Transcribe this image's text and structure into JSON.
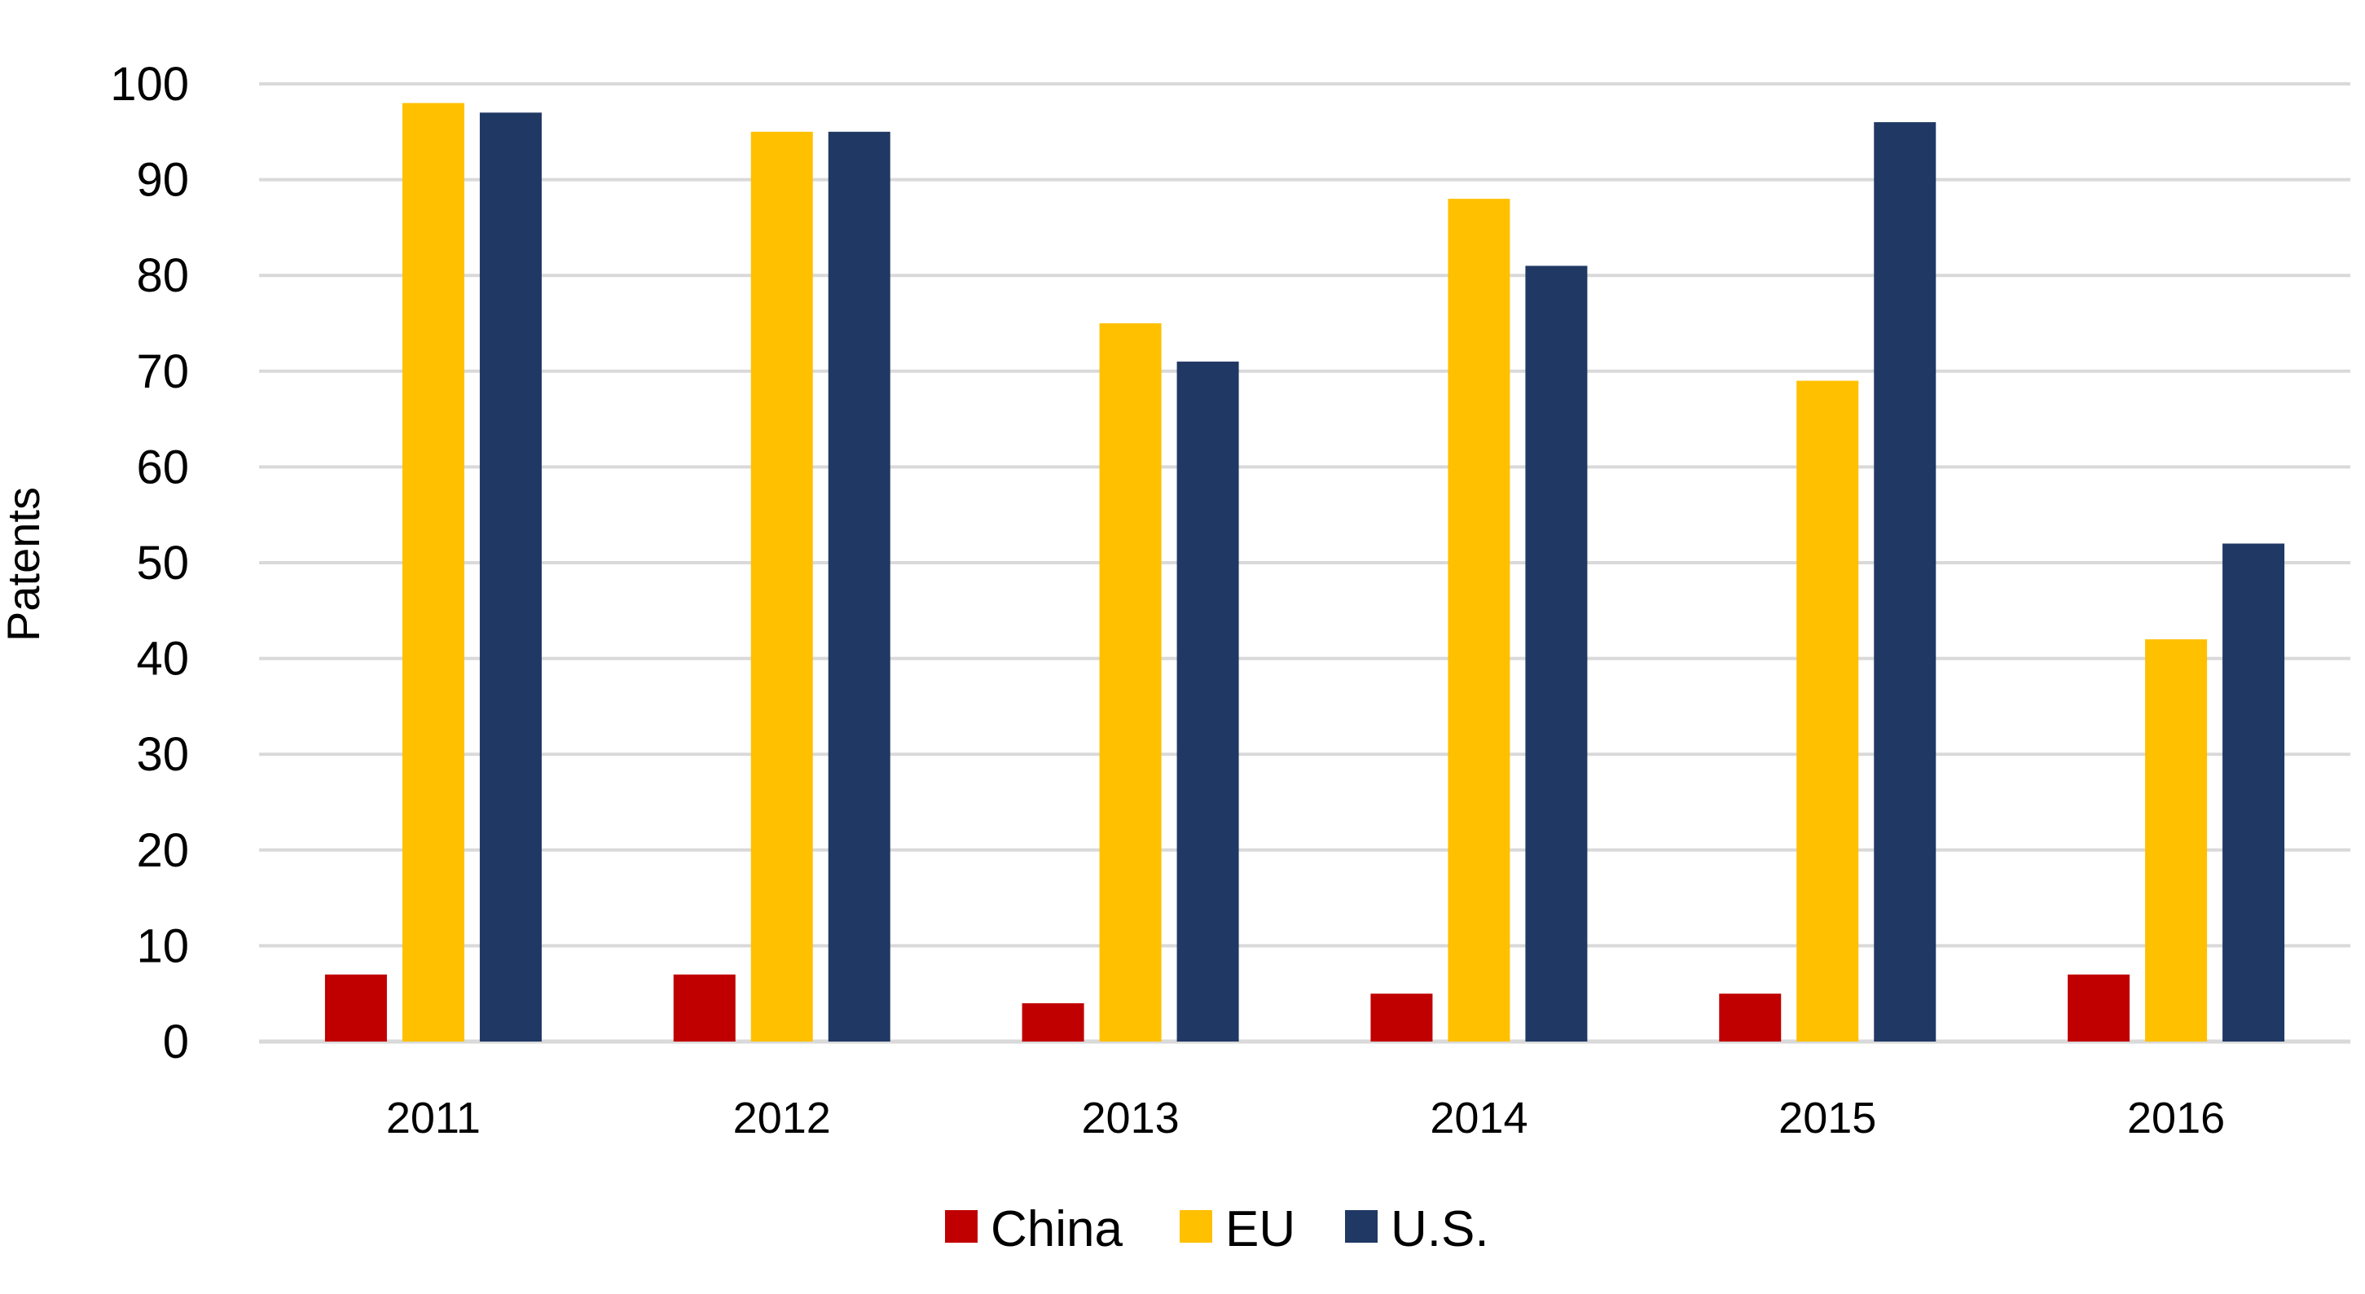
{
  "chart_data": {
    "type": "bar",
    "title": "",
    "xlabel": "",
    "ylabel": "Patents",
    "ylim": [
      0,
      100
    ],
    "yticks": [
      0,
      10,
      20,
      30,
      40,
      50,
      60,
      70,
      80,
      90,
      100
    ],
    "grid": true,
    "legend_position": "bottom",
    "categories": [
      "2011",
      "2012",
      "2013",
      "2014",
      "2015",
      "2016"
    ],
    "series": [
      {
        "name": "China",
        "color": "#c00000",
        "values": [
          7,
          7,
          4,
          5,
          5,
          7
        ]
      },
      {
        "name": "EU",
        "color": "#ffc000",
        "values": [
          98,
          95,
          75,
          88,
          69,
          42
        ]
      },
      {
        "name": "U.S.",
        "color": "#203864",
        "values": [
          97,
          95,
          71,
          81,
          96,
          52
        ]
      }
    ],
    "gridline_color": "#d9d9d9"
  }
}
